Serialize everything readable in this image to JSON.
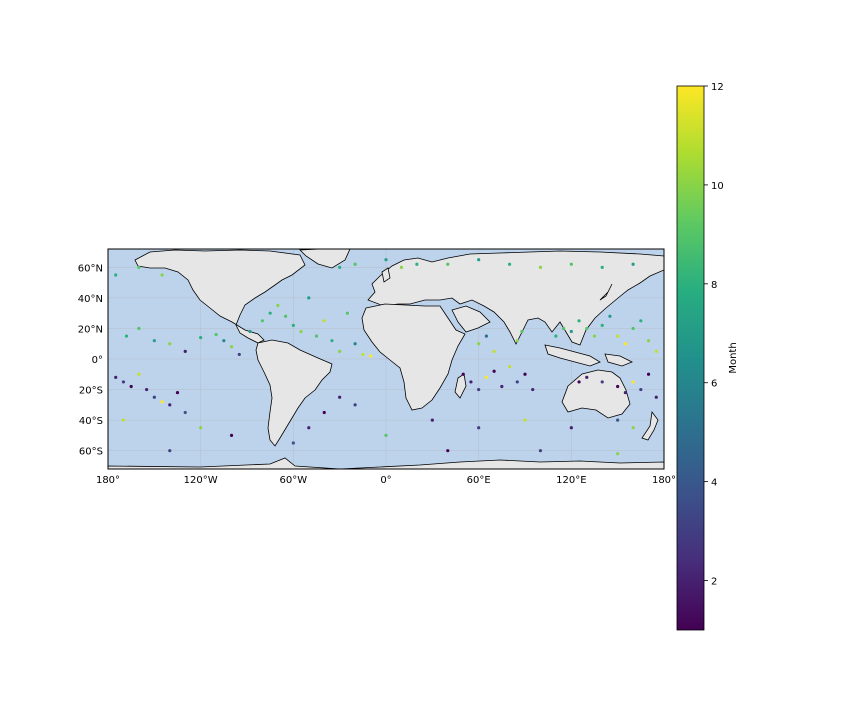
{
  "map": {
    "projection": "PlateCarree",
    "extent": {
      "lon": [
        -180,
        180
      ],
      "lat": [
        -72,
        72
      ]
    },
    "colors": {
      "ocean": "#bdd3ec",
      "land": "#e6e6e6",
      "coast": "#000000",
      "grid": "#b0b0b0"
    },
    "x_ticks": [
      {
        "value": -180,
        "label": "180°"
      },
      {
        "value": -120,
        "label": "120°W"
      },
      {
        "value": -60,
        "label": "60°W"
      },
      {
        "value": 0,
        "label": "0°"
      },
      {
        "value": 60,
        "label": "60°E"
      },
      {
        "value": 120,
        "label": "120°E"
      },
      {
        "value": 180,
        "label": "180°"
      }
    ],
    "y_ticks": [
      {
        "value": 60,
        "label": "60°N"
      },
      {
        "value": 40,
        "label": "40°N"
      },
      {
        "value": 20,
        "label": "20°N"
      },
      {
        "value": 0,
        "label": "0°"
      },
      {
        "value": -20,
        "label": "20°S"
      },
      {
        "value": -40,
        "label": "40°S"
      },
      {
        "value": -60,
        "label": "60°S"
      }
    ]
  },
  "colorbar": {
    "label": "Month",
    "range": [
      1,
      12
    ],
    "colormap": "viridis",
    "ticks": [
      {
        "value": 2,
        "label": "2"
      },
      {
        "value": 4,
        "label": "4"
      },
      {
        "value": 6,
        "label": "6"
      },
      {
        "value": 8,
        "label": "8"
      },
      {
        "value": 10,
        "label": "10"
      },
      {
        "value": 12,
        "label": "12"
      }
    ]
  },
  "chart_data": {
    "type": "scatter",
    "color_by": "Month",
    "points": [
      {
        "lon": -175,
        "lat": -12,
        "month": 2
      },
      {
        "lon": -170,
        "lat": -15,
        "month": 3
      },
      {
        "lon": -165,
        "lat": -18,
        "month": 1
      },
      {
        "lon": -160,
        "lat": -10,
        "month": 11
      },
      {
        "lon": -155,
        "lat": -20,
        "month": 2
      },
      {
        "lon": -150,
        "lat": -25,
        "month": 3
      },
      {
        "lon": -145,
        "lat": -28,
        "month": 12
      },
      {
        "lon": -140,
        "lat": -30,
        "month": 2
      },
      {
        "lon": -135,
        "lat": -22,
        "month": 1
      },
      {
        "lon": -130,
        "lat": -35,
        "month": 4
      },
      {
        "lon": -168,
        "lat": 15,
        "month": 8
      },
      {
        "lon": -160,
        "lat": 20,
        "month": 9
      },
      {
        "lon": -150,
        "lat": 12,
        "month": 7
      },
      {
        "lon": -140,
        "lat": 10,
        "month": 10
      },
      {
        "lon": -130,
        "lat": 5,
        "month": 2
      },
      {
        "lon": -120,
        "lat": 14,
        "month": 8
      },
      {
        "lon": -110,
        "lat": 16,
        "month": 9
      },
      {
        "lon": -105,
        "lat": 12,
        "month": 6
      },
      {
        "lon": -100,
        "lat": 8,
        "month": 10
      },
      {
        "lon": -95,
        "lat": 3,
        "month": 3
      },
      {
        "lon": -88,
        "lat": 18,
        "month": 7
      },
      {
        "lon": -80,
        "lat": 25,
        "month": 9
      },
      {
        "lon": -75,
        "lat": 30,
        "month": 8
      },
      {
        "lon": -70,
        "lat": 35,
        "month": 10
      },
      {
        "lon": -65,
        "lat": 28,
        "month": 9
      },
      {
        "lon": -60,
        "lat": 22,
        "month": 8
      },
      {
        "lon": -55,
        "lat": 18,
        "month": 10
      },
      {
        "lon": -50,
        "lat": 40,
        "month": 7
      },
      {
        "lon": -45,
        "lat": 15,
        "month": 9
      },
      {
        "lon": -40,
        "lat": 25,
        "month": 11
      },
      {
        "lon": -35,
        "lat": 12,
        "month": 8
      },
      {
        "lon": -30,
        "lat": 5,
        "month": 10
      },
      {
        "lon": -25,
        "lat": 30,
        "month": 9
      },
      {
        "lon": -20,
        "lat": 10,
        "month": 6
      },
      {
        "lon": -15,
        "lat": 3,
        "month": 11
      },
      {
        "lon": -10,
        "lat": 2,
        "month": 12
      },
      {
        "lon": -30,
        "lat": -25,
        "month": 2
      },
      {
        "lon": -20,
        "lat": -30,
        "month": 3
      },
      {
        "lon": -40,
        "lat": -35,
        "month": 1
      },
      {
        "lon": -50,
        "lat": -45,
        "month": 2
      },
      {
        "lon": -60,
        "lat": -55,
        "month": 4
      },
      {
        "lon": -100,
        "lat": -50,
        "month": 1
      },
      {
        "lon": -120,
        "lat": -45,
        "month": 10
      },
      {
        "lon": -140,
        "lat": -60,
        "month": 3
      },
      {
        "lon": -170,
        "lat": -40,
        "month": 11
      },
      {
        "lon": -175,
        "lat": 55,
        "month": 8
      },
      {
        "lon": -160,
        "lat": 60,
        "month": 9
      },
      {
        "lon": -145,
        "lat": 55,
        "month": 10
      },
      {
        "lon": -30,
        "lat": 60,
        "month": 8
      },
      {
        "lon": -20,
        "lat": 62,
        "month": 9
      },
      {
        "lon": 0,
        "lat": 65,
        "month": 7
      },
      {
        "lon": 10,
        "lat": 60,
        "month": 10
      },
      {
        "lon": 20,
        "lat": 62,
        "month": 8
      },
      {
        "lon": 40,
        "lat": 62,
        "month": 9
      },
      {
        "lon": 60,
        "lat": 65,
        "month": 7
      },
      {
        "lon": 80,
        "lat": 62,
        "month": 8
      },
      {
        "lon": 100,
        "lat": 60,
        "month": 10
      },
      {
        "lon": 120,
        "lat": 62,
        "month": 9
      },
      {
        "lon": 140,
        "lat": 60,
        "month": 8
      },
      {
        "lon": 160,
        "lat": 62,
        "month": 7
      },
      {
        "lon": 50,
        "lat": -10,
        "month": 1
      },
      {
        "lon": 55,
        "lat": -15,
        "month": 2
      },
      {
        "lon": 60,
        "lat": -20,
        "month": 3
      },
      {
        "lon": 65,
        "lat": -12,
        "month": 12
      },
      {
        "lon": 70,
        "lat": -8,
        "month": 1
      },
      {
        "lon": 75,
        "lat": -18,
        "month": 2
      },
      {
        "lon": 80,
        "lat": -5,
        "month": 11
      },
      {
        "lon": 85,
        "lat": -15,
        "month": 3
      },
      {
        "lon": 90,
        "lat": -10,
        "month": 1
      },
      {
        "lon": 95,
        "lat": -20,
        "month": 2
      },
      {
        "lon": 60,
        "lat": 10,
        "month": 10
      },
      {
        "lon": 65,
        "lat": 15,
        "month": 5
      },
      {
        "lon": 70,
        "lat": 5,
        "month": 11
      },
      {
        "lon": 85,
        "lat": 12,
        "month": 10
      },
      {
        "lon": 88,
        "lat": 18,
        "month": 9
      },
      {
        "lon": 110,
        "lat": 15,
        "month": 8
      },
      {
        "lon": 115,
        "lat": 20,
        "month": 9
      },
      {
        "lon": 120,
        "lat": 18,
        "month": 7
      },
      {
        "lon": 125,
        "lat": 25,
        "month": 8
      },
      {
        "lon": 130,
        "lat": 20,
        "month": 9
      },
      {
        "lon": 135,
        "lat": 15,
        "month": 10
      },
      {
        "lon": 140,
        "lat": 22,
        "month": 8
      },
      {
        "lon": 145,
        "lat": 28,
        "month": 7
      },
      {
        "lon": 150,
        "lat": 15,
        "month": 11
      },
      {
        "lon": 155,
        "lat": 10,
        "month": 12
      },
      {
        "lon": 160,
        "lat": 20,
        "month": 9
      },
      {
        "lon": 165,
        "lat": 25,
        "month": 8
      },
      {
        "lon": 170,
        "lat": 12,
        "month": 10
      },
      {
        "lon": 175,
        "lat": 5,
        "month": 11
      },
      {
        "lon": 125,
        "lat": -15,
        "month": 1
      },
      {
        "lon": 130,
        "lat": -12,
        "month": 2
      },
      {
        "lon": 140,
        "lat": -15,
        "month": 3
      },
      {
        "lon": 150,
        "lat": -18,
        "month": 1
      },
      {
        "lon": 155,
        "lat": -22,
        "month": 2
      },
      {
        "lon": 160,
        "lat": -15,
        "month": 12
      },
      {
        "lon": 165,
        "lat": -20,
        "month": 3
      },
      {
        "lon": 170,
        "lat": -10,
        "month": 1
      },
      {
        "lon": 175,
        "lat": -25,
        "month": 2
      },
      {
        "lon": 150,
        "lat": -40,
        "month": 4
      },
      {
        "lon": 160,
        "lat": -45,
        "month": 10
      },
      {
        "lon": 120,
        "lat": -45,
        "month": 2
      },
      {
        "lon": 90,
        "lat": -40,
        "month": 11
      },
      {
        "lon": 60,
        "lat": -45,
        "month": 3
      },
      {
        "lon": 30,
        "lat": -40,
        "month": 2
      },
      {
        "lon": 0,
        "lat": -50,
        "month": 9
      },
      {
        "lon": 40,
        "lat": -60,
        "month": 1
      },
      {
        "lon": 100,
        "lat": -60,
        "month": 3
      },
      {
        "lon": 150,
        "lat": -62,
        "month": 10
      }
    ]
  }
}
